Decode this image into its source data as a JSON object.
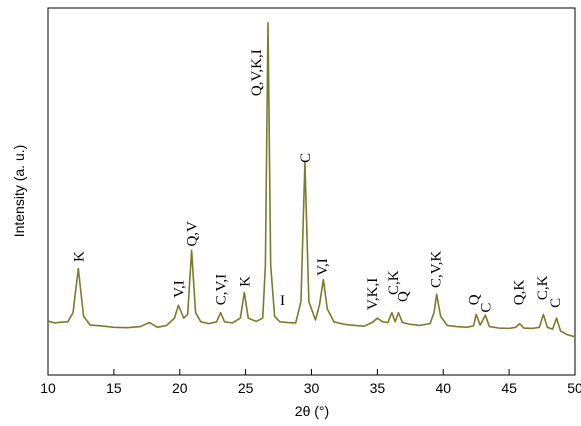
{
  "chart_data": {
    "type": "line",
    "x_label": "2θ (°)",
    "y_label": "Intensity (a. u.)",
    "xlim": [
      10,
      50
    ],
    "ylim": [
      0,
      100
    ],
    "xticks": [
      10,
      15,
      20,
      25,
      30,
      35,
      40,
      45,
      50
    ],
    "series": [
      {
        "color": "#7d7a2c",
        "x": [
          10,
          10.5,
          11,
          11.5,
          11.9,
          12.3,
          12.7,
          13.2,
          14,
          15,
          16,
          17,
          17.7,
          18.3,
          19,
          19.6,
          19.9,
          20.3,
          20.6,
          20.9,
          21.2,
          21.6,
          22.2,
          22.8,
          23.1,
          23.4,
          24,
          24.6,
          24.9,
          25.2,
          25.8,
          26.3,
          26.5,
          26.7,
          26.9,
          27.2,
          27.6,
          28.2,
          28.8,
          29.2,
          29.5,
          29.8,
          30.3,
          30.6,
          30.9,
          31.2,
          31.7,
          32.5,
          33.3,
          34,
          34.6,
          35,
          35.4,
          35.8,
          36.1,
          36.35,
          36.6,
          36.9,
          37.5,
          38.2,
          39,
          39.3,
          39.5,
          39.8,
          40.3,
          41,
          41.8,
          42.3,
          42.5,
          42.8,
          43.2,
          43.5,
          44.2,
          45,
          45.5,
          45.8,
          46.1,
          46.8,
          47.3,
          47.6,
          47.9,
          48.3,
          48.6,
          48.9,
          49.4,
          50
        ],
        "values": [
          14.7,
          14.2,
          14.4,
          14.5,
          17,
          29,
          16,
          13.6,
          13.4,
          13,
          12.9,
          13.2,
          14.3,
          13,
          13.5,
          15.5,
          19,
          15.5,
          16.5,
          34,
          17,
          14.5,
          14,
          14.5,
          17,
          14.5,
          14.2,
          15.5,
          22.5,
          15.5,
          14.6,
          15.5,
          30,
          96,
          30,
          16,
          14.5,
          14.3,
          14.2,
          20,
          58,
          20,
          15,
          19,
          26,
          18,
          14.5,
          13.8,
          13.5,
          13.3,
          14.3,
          15.5,
          14.5,
          14.3,
          17,
          14.5,
          17,
          14.3,
          13.8,
          13.5,
          14,
          17,
          22,
          16,
          13.5,
          13.2,
          13,
          13.4,
          16.5,
          13.6,
          16.3,
          13.2,
          12.8,
          12.7,
          13,
          14,
          12.8,
          12.7,
          13,
          16.5,
          13,
          12.5,
          15.5,
          12,
          11,
          10.4
        ]
      }
    ],
    "annotations": [
      {
        "text": "K",
        "x": 12.3,
        "y": 30.8
      },
      {
        "text": "V,I",
        "x": 19.9,
        "y": 21
      },
      {
        "text": "Q,V",
        "x": 20.9,
        "y": 35
      },
      {
        "text": "C,V,I",
        "x": 23.1,
        "y": 19
      },
      {
        "text": "K",
        "x": 24.9,
        "y": 24
      },
      {
        "text": "Q,V,K,I",
        "x": 25.8,
        "y": 76
      },
      {
        "text": "I",
        "x": 27.8,
        "y": 20.4,
        "rotated": false
      },
      {
        "text": "C",
        "x": 29.5,
        "y": 57.8
      },
      {
        "text": "V,I",
        "x": 30.8,
        "y": 27
      },
      {
        "text": "V,K,I",
        "x": 34.6,
        "y": 17.7
      },
      {
        "text": "C,K",
        "x": 36.2,
        "y": 21.8
      },
      {
        "text": "Q",
        "x": 36.9,
        "y": 19.9
      },
      {
        "text": "C,V,K",
        "x": 39.4,
        "y": 23.7
      },
      {
        "text": "Q",
        "x": 42.3,
        "y": 19
      },
      {
        "text": "C",
        "x": 43.2,
        "y": 17
      },
      {
        "text": "Q,K",
        "x": 45.7,
        "y": 19
      },
      {
        "text": "C,K",
        "x": 47.5,
        "y": 20.4
      },
      {
        "text": "C",
        "x": 48.5,
        "y": 18.3
      }
    ]
  }
}
